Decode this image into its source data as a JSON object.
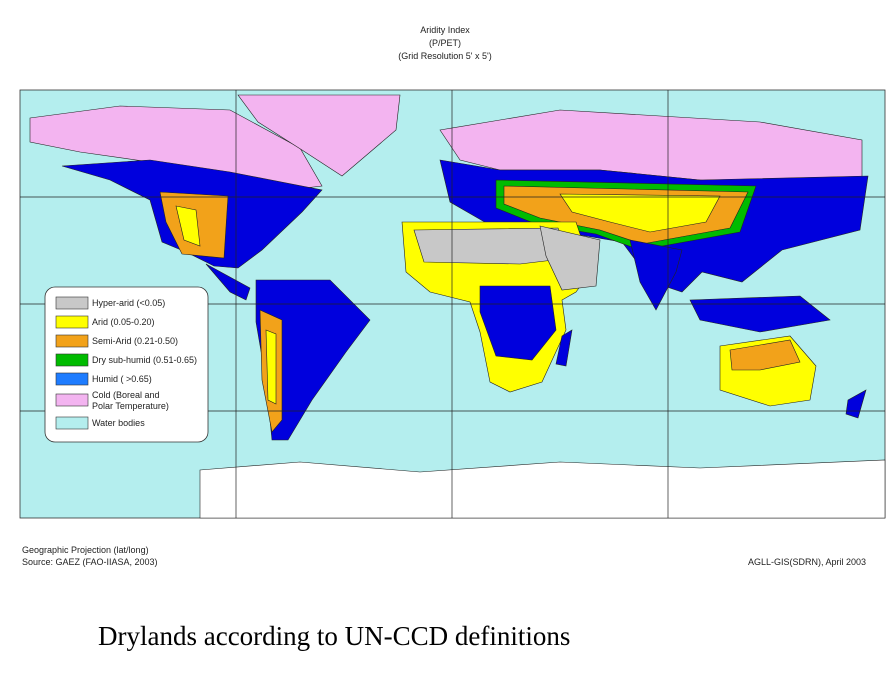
{
  "header": {
    "title_lines": [
      "Aridity Index",
      "(P/PET)",
      "(Grid Resolution 5' x 5')"
    ]
  },
  "legend": {
    "items": [
      {
        "label_lines": [
          "Hyper-arid (<0.05)"
        ]
      },
      {
        "label_lines": [
          "Arid (0.05-0.20)"
        ]
      },
      {
        "label_lines": [
          "Semi-Arid (0.21-0.50)"
        ]
      },
      {
        "label_lines": [
          "Dry sub-humid (0.51-0.65)"
        ]
      },
      {
        "label_lines": [
          "Humid ( >0.65)"
        ]
      },
      {
        "label_lines": [
          "Cold (Boreal and",
          "Polar Temperature)"
        ]
      },
      {
        "label_lines": [
          "Water bodies"
        ]
      }
    ]
  },
  "footer": {
    "left_lines": [
      "Geographic Projection (lat/long)",
      "Source: GAEZ (FAO-IIASA, 2003)"
    ],
    "right": "AGLL-GIS(SDRN), April 2003"
  },
  "caption": "Drylands according to UN-CCD definitions"
}
